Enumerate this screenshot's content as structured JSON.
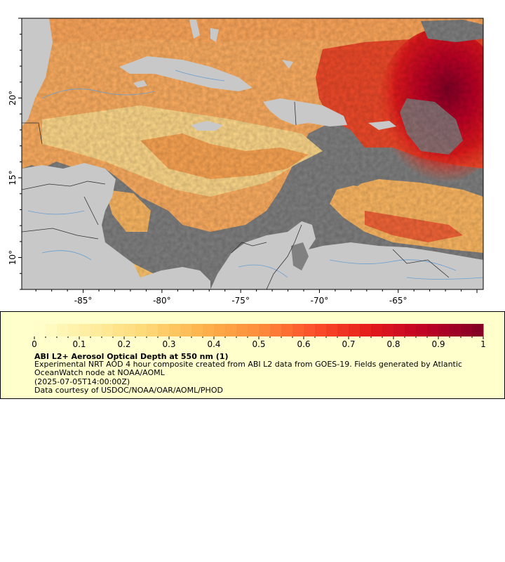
{
  "map": {
    "lon_ticks": [
      {
        "lon": -85,
        "label": "-85°"
      },
      {
        "lon": -80,
        "label": "-80°"
      },
      {
        "lon": -75,
        "label": "-75°"
      },
      {
        "lon": -70,
        "label": "-70°"
      },
      {
        "lon": -65,
        "label": "-65°"
      }
    ],
    "lat_ticks": [
      {
        "lat": 10,
        "label": "10°"
      },
      {
        "lat": 15,
        "label": "15°"
      },
      {
        "lat": 20,
        "label": "20°"
      }
    ],
    "lon_range": [
      -88.9,
      -59.6
    ],
    "lat_range": [
      8.0,
      25.0
    ],
    "colors": {
      "no_data_ocean": "#808080",
      "land": "#c8c8c8",
      "borders": "#333333",
      "rivers": "#6a9fd0"
    }
  },
  "legend": {
    "title": "ABI L2+ Aerosol Optical Depth at 550 nm (1)",
    "description": "Experimental NRT AOD 4 hour composite created from ABI L2 data from GOES-19. Fields generated by Atlantic OceanWatch node at NOAA/AOML",
    "time": "(2025-07-05T14:00:00Z)",
    "credit": "Data courtesy of USDOC/NOAA/OAR/AOML/PHOD",
    "scale_min": 0,
    "scale_max": 1,
    "tick_labels": [
      "0",
      "0.1",
      "0.2",
      "0.3",
      "0.4",
      "0.5",
      "0.6",
      "0.7",
      "0.8",
      "0.9",
      "1"
    ],
    "colormap": [
      "#ffffcc",
      "#ffeda0",
      "#fed976",
      "#feb24c",
      "#fd8d3c",
      "#fc4e2a",
      "#e31a1c",
      "#bd0026",
      "#800026"
    ]
  }
}
